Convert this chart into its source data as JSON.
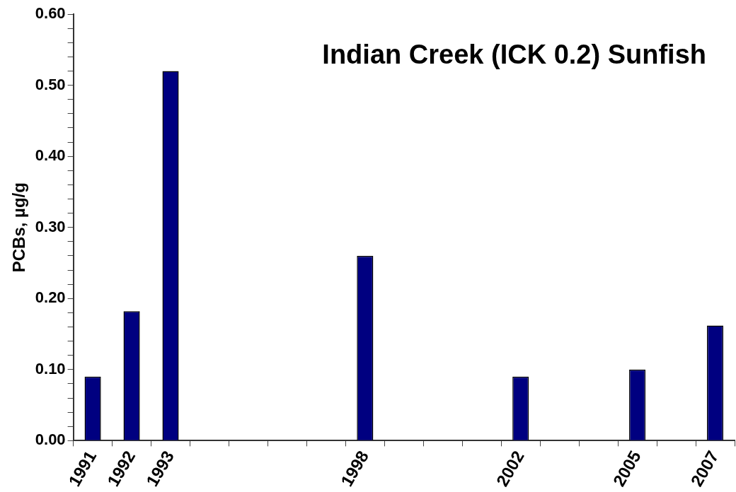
{
  "chart_data": {
    "type": "bar",
    "title": "Indian Creek (ICK 0.2) Sunfish",
    "ylabel": "PCBs, µg/g",
    "categories": [
      "1991",
      "1992",
      "1993",
      null,
      null,
      null,
      null,
      "1998",
      null,
      null,
      null,
      "2002",
      null,
      null,
      "2005",
      null,
      "2007"
    ],
    "values": [
      0.09,
      0.182,
      0.52,
      null,
      null,
      null,
      null,
      0.26,
      null,
      null,
      null,
      0.09,
      null,
      null,
      0.1,
      null,
      0.162
    ],
    "color": "#000080",
    "ylim": [
      0,
      0.6
    ],
    "yticks": [
      {
        "value": 0,
        "label": "0.00"
      },
      {
        "value": 0.02,
        "label": null
      },
      {
        "value": 0.04,
        "label": null
      },
      {
        "value": 0.06,
        "label": null
      },
      {
        "value": 0.08,
        "label": null
      },
      {
        "value": 0.1,
        "label": "0.10"
      },
      {
        "value": 0.12,
        "label": null
      },
      {
        "value": 0.14,
        "label": null
      },
      {
        "value": 0.16,
        "label": null
      },
      {
        "value": 0.18,
        "label": null
      },
      {
        "value": 0.2,
        "label": "0.20"
      },
      {
        "value": 0.22,
        "label": null
      },
      {
        "value": 0.24,
        "label": null
      },
      {
        "value": 0.26,
        "label": null
      },
      {
        "value": 0.28,
        "label": null
      },
      {
        "value": 0.3,
        "label": "0.30"
      },
      {
        "value": 0.32,
        "label": null
      },
      {
        "value": 0.34,
        "label": null
      },
      {
        "value": 0.36,
        "label": null
      },
      {
        "value": 0.38,
        "label": null
      },
      {
        "value": 0.4,
        "label": "0.40"
      },
      {
        "value": 0.42,
        "label": null
      },
      {
        "value": 0.44,
        "label": null
      },
      {
        "value": 0.46,
        "label": null
      },
      {
        "value": 0.48,
        "label": null
      },
      {
        "value": 0.5,
        "label": "0.50"
      },
      {
        "value": 0.52,
        "label": null
      },
      {
        "value": 0.54,
        "label": null
      },
      {
        "value": 0.56,
        "label": null
      },
      {
        "value": 0.58,
        "label": null
      },
      {
        "value": 0.6,
        "label": "0.60"
      }
    ],
    "grid": false,
    "legend": false
  }
}
